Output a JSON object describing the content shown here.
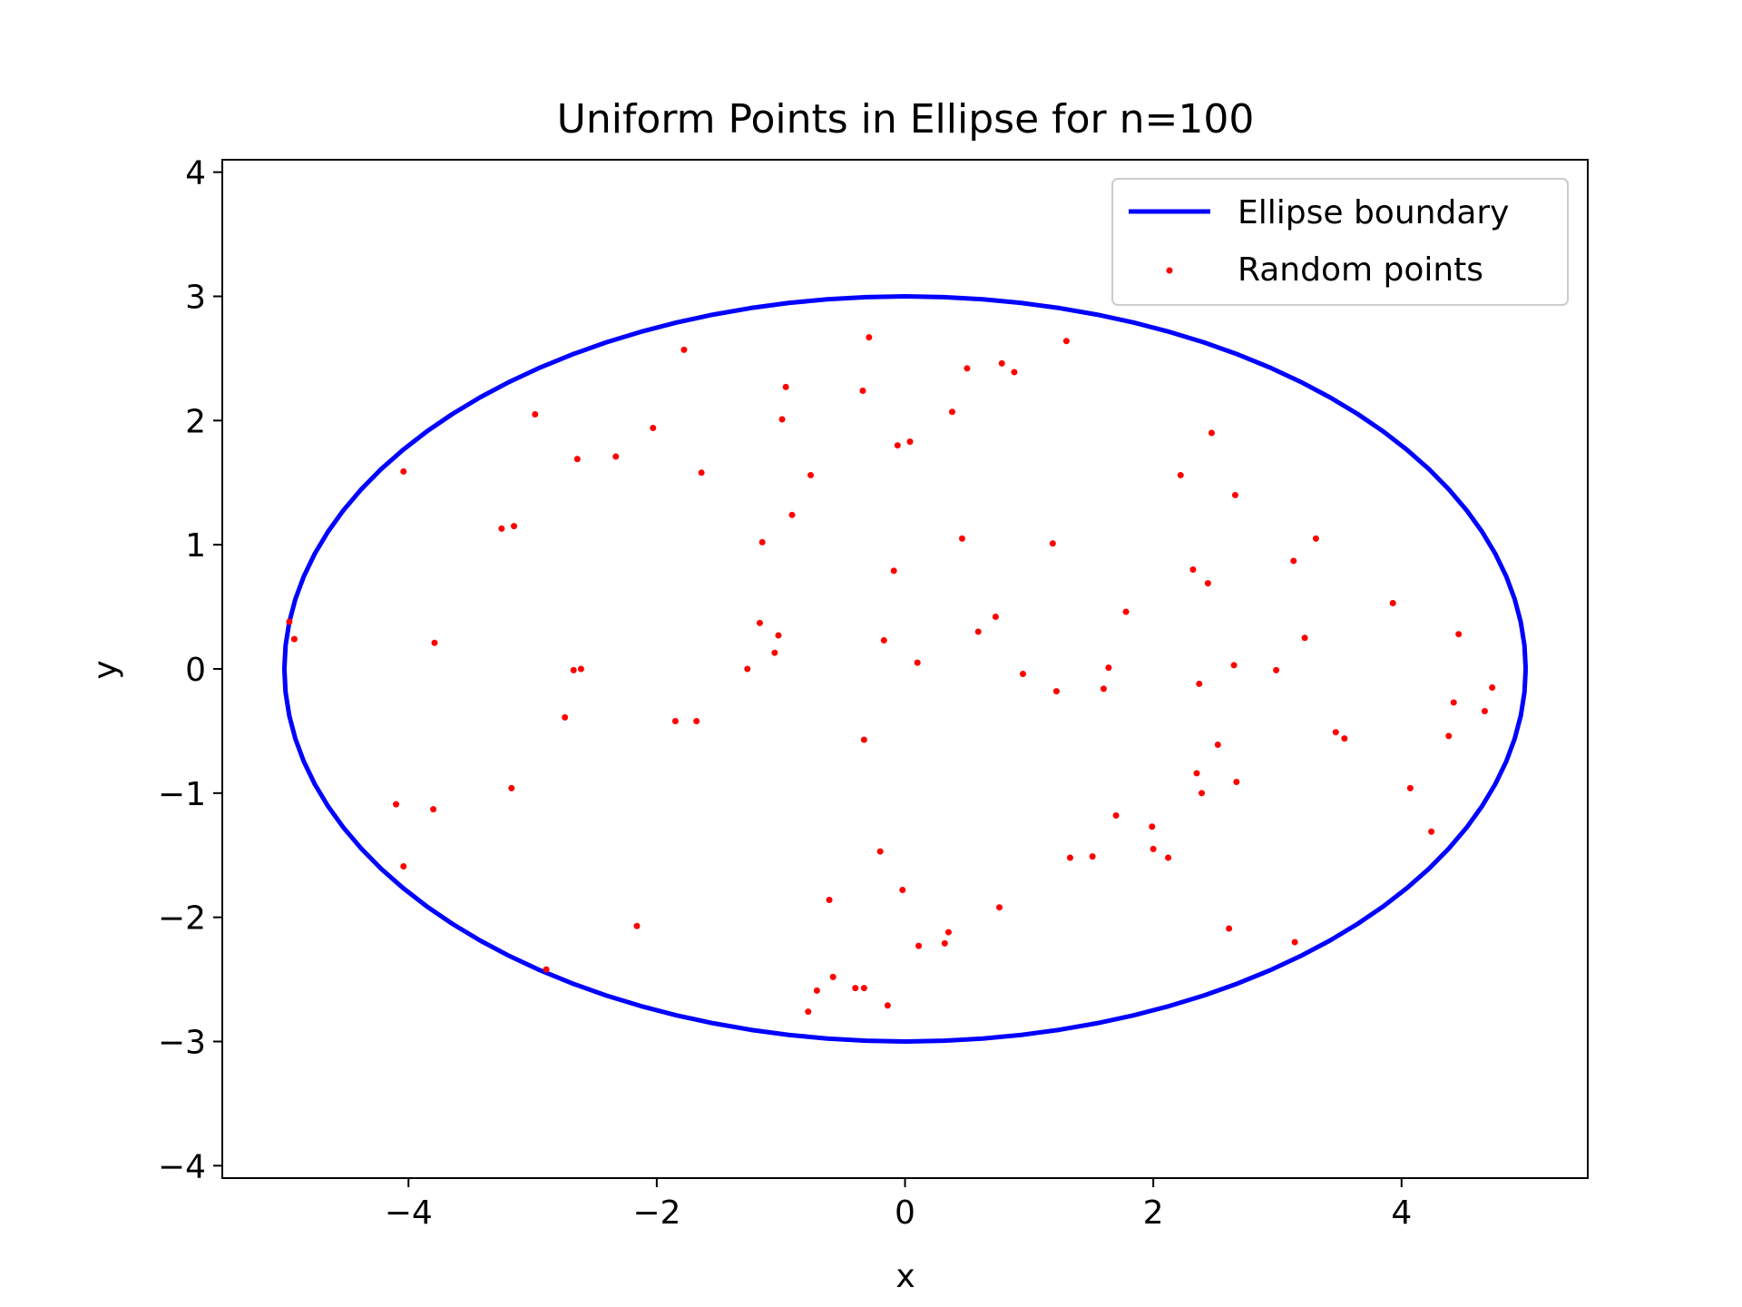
{
  "chart_data": {
    "type": "scatter",
    "title": "Uniform Points in Ellipse for n=100",
    "xlabel": "x",
    "ylabel": "y",
    "xlim": [
      -5.5,
      5.5
    ],
    "ylim": [
      -4.1,
      4.1
    ],
    "xticks": [
      -4,
      -2,
      0,
      2,
      4
    ],
    "yticks": [
      -4,
      -3,
      -2,
      -1,
      0,
      1,
      2,
      3,
      4
    ],
    "xtick_labels": [
      "−4",
      "−2",
      "0",
      "2",
      "4"
    ],
    "ytick_labels": [
      "−4",
      "−3",
      "−2",
      "−1",
      "0",
      "1",
      "2",
      "3",
      "4"
    ],
    "grid": false,
    "legend_position": "top-right",
    "series": [
      {
        "name": "Ellipse boundary",
        "kind": "line",
        "color": "#0000ff",
        "ellipse": {
          "a": 5,
          "b": 3,
          "center": [
            0,
            0
          ]
        }
      },
      {
        "name": "Random points",
        "kind": "scatter",
        "color": "#ff0000",
        "points": [
          [
            -0.29,
            2.67
          ],
          [
            1.3,
            2.64
          ],
          [
            -1.78,
            2.57
          ],
          [
            0.78,
            2.46
          ],
          [
            0.88,
            2.39
          ],
          [
            0.5,
            2.42
          ],
          [
            -0.96,
            2.27
          ],
          [
            -0.34,
            2.24
          ],
          [
            -2.98,
            2.05
          ],
          [
            0.38,
            2.07
          ],
          [
            -0.99,
            2.01
          ],
          [
            -2.03,
            1.94
          ],
          [
            2.47,
            1.9
          ],
          [
            0.04,
            1.83
          ],
          [
            -0.06,
            1.8
          ],
          [
            -2.33,
            1.71
          ],
          [
            -2.64,
            1.69
          ],
          [
            -4.04,
            1.59
          ],
          [
            -1.64,
            1.58
          ],
          [
            -0.76,
            1.56
          ],
          [
            2.22,
            1.56
          ],
          [
            2.66,
            1.4
          ],
          [
            -0.91,
            1.24
          ],
          [
            -3.25,
            1.13
          ],
          [
            -3.15,
            1.15
          ],
          [
            0.46,
            1.05
          ],
          [
            3.31,
            1.05
          ],
          [
            -1.15,
            1.02
          ],
          [
            1.19,
            1.01
          ],
          [
            3.13,
            0.87
          ],
          [
            -0.09,
            0.79
          ],
          [
            2.32,
            0.8
          ],
          [
            2.44,
            0.69
          ],
          [
            3.93,
            0.53
          ],
          [
            1.78,
            0.46
          ],
          [
            0.73,
            0.42
          ],
          [
            -1.17,
            0.37
          ],
          [
            0.59,
            0.3
          ],
          [
            4.46,
            0.28
          ],
          [
            -1.02,
            0.27
          ],
          [
            3.22,
            0.25
          ],
          [
            -0.17,
            0.23
          ],
          [
            -3.79,
            0.21
          ],
          [
            -4.96,
            0.38
          ],
          [
            -4.92,
            0.24
          ],
          [
            -1.05,
            0.13
          ],
          [
            0.1,
            0.05
          ],
          [
            1.64,
            0.01
          ],
          [
            2.65,
            0.03
          ],
          [
            -2.67,
            -0.01
          ],
          [
            -2.61,
            0.0
          ],
          [
            -1.27,
            0.0
          ],
          [
            2.99,
            -0.01
          ],
          [
            0.95,
            -0.04
          ],
          [
            1.6,
            -0.16
          ],
          [
            2.37,
            -0.12
          ],
          [
            1.22,
            -0.18
          ],
          [
            4.73,
            -0.15
          ],
          [
            4.42,
            -0.27
          ],
          [
            4.67,
            -0.34
          ],
          [
            -2.74,
            -0.39
          ],
          [
            -1.85,
            -0.42
          ],
          [
            -1.68,
            -0.42
          ],
          [
            3.47,
            -0.51
          ],
          [
            3.54,
            -0.56
          ],
          [
            4.38,
            -0.54
          ],
          [
            -0.33,
            -0.57
          ],
          [
            2.52,
            -0.61
          ],
          [
            2.35,
            -0.84
          ],
          [
            2.67,
            -0.91
          ],
          [
            -3.17,
            -0.96
          ],
          [
            4.07,
            -0.96
          ],
          [
            2.39,
            -1.0
          ],
          [
            -4.1,
            -1.09
          ],
          [
            -3.8,
            -1.13
          ],
          [
            1.7,
            -1.18
          ],
          [
            1.99,
            -1.27
          ],
          [
            4.24,
            -1.31
          ],
          [
            -0.2,
            -1.47
          ],
          [
            2.0,
            -1.45
          ],
          [
            2.12,
            -1.52
          ],
          [
            1.33,
            -1.52
          ],
          [
            1.51,
            -1.51
          ],
          [
            -4.04,
            -1.59
          ],
          [
            -0.02,
            -1.78
          ],
          [
            0.76,
            -1.92
          ],
          [
            -0.61,
            -1.86
          ],
          [
            -2.16,
            -2.07
          ],
          [
            2.61,
            -2.09
          ],
          [
            0.35,
            -2.12
          ],
          [
            0.32,
            -2.21
          ],
          [
            0.11,
            -2.23
          ],
          [
            3.14,
            -2.2
          ],
          [
            -2.89,
            -2.42
          ],
          [
            -0.58,
            -2.48
          ],
          [
            -0.33,
            -2.57
          ],
          [
            -0.71,
            -2.59
          ],
          [
            -0.14,
            -2.71
          ],
          [
            -0.78,
            -2.76
          ],
          [
            -0.4,
            -2.57
          ]
        ]
      }
    ]
  }
}
